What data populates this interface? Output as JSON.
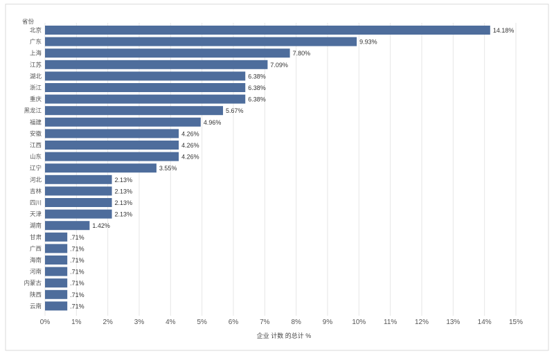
{
  "chart_data": {
    "type": "bar",
    "orientation": "horizontal",
    "title": "",
    "header_label": "省份",
    "xlabel": "企业 计数 的总计 %",
    "ylabel": "",
    "xlim": [
      0,
      15
    ],
    "x_ticks": [
      "0%",
      "1%",
      "2%",
      "3%",
      "4%",
      "5%",
      "6%",
      "7%",
      "8%",
      "9%",
      "10%",
      "11%",
      "12%",
      "13%",
      "14%",
      "15%"
    ],
    "grid": "vertical",
    "bar_color": "#4e6d9c",
    "categories": [
      "北京",
      "广东",
      "上海",
      "江苏",
      "湖北",
      "浙江",
      "重庆",
      "黑龙江",
      "福建",
      "安徽",
      "江西",
      "山东",
      "辽宁",
      "河北",
      "吉林",
      "四川",
      "天津",
      "湖南",
      "甘肃",
      "广西",
      "海南",
      "河南",
      "内蒙古",
      "陕西",
      "云南"
    ],
    "values": [
      14.18,
      9.93,
      7.8,
      7.09,
      6.38,
      6.38,
      6.38,
      5.67,
      4.96,
      4.26,
      4.26,
      4.26,
      3.55,
      2.13,
      2.13,
      2.13,
      2.13,
      1.42,
      0.71,
      0.71,
      0.71,
      0.71,
      0.71,
      0.71,
      0.71
    ],
    "data_labels": [
      "14.18%",
      "9.93%",
      "7.80%",
      "7.09%",
      "6.38%",
      "6.38%",
      "6.38%",
      "5.67%",
      "4.96%",
      "4.26%",
      "4.26%",
      "4.26%",
      "3.55%",
      "2.13%",
      "2.13%",
      "2.13%",
      "2.13%",
      "1.42%",
      ".71%",
      ".71%",
      ".71%",
      ".71%",
      ".71%",
      ".71%",
      ".71%"
    ]
  }
}
